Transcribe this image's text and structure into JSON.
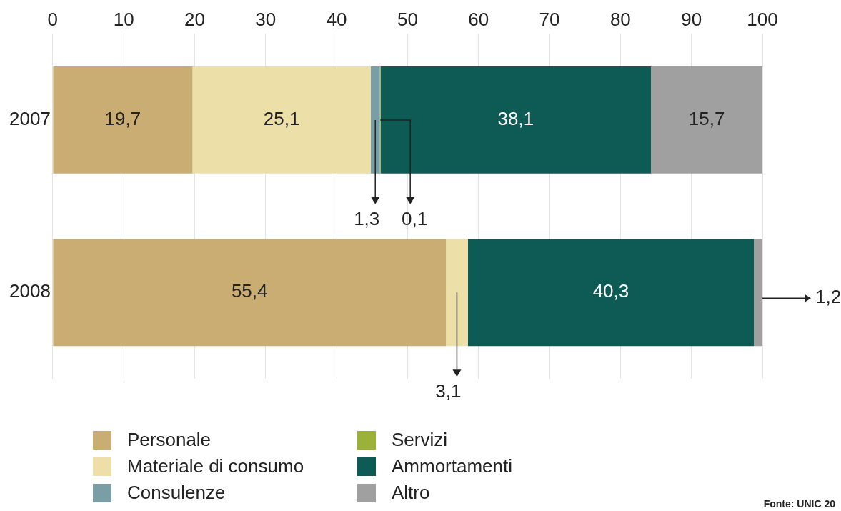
{
  "chart_data": {
    "type": "bar",
    "orientation": "horizontal",
    "stacked": true,
    "categories": [
      "2007",
      "2008"
    ],
    "series": [
      {
        "name": "Personale",
        "color": "#c9ad72",
        "values": [
          19.7,
          55.4
        ],
        "value_labels": [
          "19,7",
          "55,4"
        ]
      },
      {
        "name": "Materiale di consumo",
        "color": "#ecdfa8",
        "values": [
          25.1,
          3.1
        ],
        "value_labels": [
          "25,1",
          "3,1"
        ]
      },
      {
        "name": "Consulenze",
        "color": "#7a9ea5",
        "values": [
          1.3,
          null
        ],
        "value_labels": [
          "1,3",
          null
        ]
      },
      {
        "name": "Servizi",
        "color": "#9bb23a",
        "values": [
          0.1,
          null
        ],
        "value_labels": [
          "0,1",
          null
        ]
      },
      {
        "name": "Ammortamenti",
        "color": "#0e5a55",
        "values": [
          38.1,
          40.3
        ],
        "value_labels": [
          "38,1",
          "40,3"
        ]
      },
      {
        "name": "Altro",
        "color": "#a0a0a0",
        "values": [
          15.7,
          1.2
        ],
        "value_labels": [
          "15,7",
          "1,2"
        ]
      }
    ],
    "xlim": [
      0,
      100
    ],
    "xticks": [
      0,
      10,
      20,
      30,
      40,
      50,
      60,
      70,
      80,
      90,
      100
    ],
    "grid": "x",
    "legend": "bottom",
    "annotations": [
      "Fonte: UNIC 20"
    ]
  }
}
